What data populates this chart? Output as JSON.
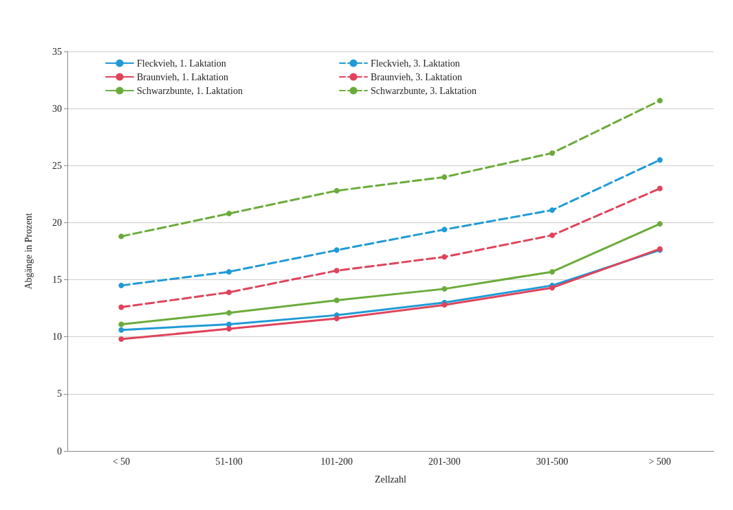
{
  "chart_data": {
    "type": "line",
    "xlabel": "Zellzahl",
    "ylabel": "Abgänge in Prozent",
    "categories": [
      "< 50",
      "51-100",
      "101-200",
      "201-300",
      "301-500",
      "> 500"
    ],
    "ylim": [
      0,
      35
    ],
    "yticks": [
      0,
      5,
      10,
      15,
      20,
      25,
      30,
      35
    ],
    "grid": "y",
    "legend": "top left",
    "marker": "circle",
    "series": [
      {
        "name": "Fleckvieh, 1. Laktation",
        "color": "#1f9ad6",
        "line_style": "solid",
        "values": [
          10.6,
          11.1,
          11.9,
          13.0,
          14.5,
          17.6
        ]
      },
      {
        "name": "Braunvieh, 1. Laktation",
        "color": "#e0435a",
        "line_style": "solid",
        "values": [
          9.8,
          10.7,
          11.6,
          12.8,
          14.3,
          17.7
        ]
      },
      {
        "name": "Schwarzbunte, 1. Laktation",
        "color": "#6aab3a",
        "line_style": "solid",
        "values": [
          11.1,
          12.1,
          13.2,
          14.2,
          15.7,
          19.9
        ]
      },
      {
        "name": "Fleckvieh, 3. Laktation",
        "color": "#1f9ad6",
        "line_style": "dashed",
        "values": [
          14.5,
          15.7,
          17.6,
          19.4,
          21.1,
          25.5
        ]
      },
      {
        "name": "Braunvieh, 3. Laktation",
        "color": "#e0435a",
        "line_style": "dashed",
        "values": [
          12.6,
          13.9,
          15.8,
          17.0,
          18.9,
          23.0
        ]
      },
      {
        "name": "Schwarzbunte, 3. Laktation",
        "color": "#6aab3a",
        "line_style": "dashed",
        "values": [
          18.8,
          20.8,
          22.8,
          24.0,
          26.1,
          30.7
        ]
      }
    ]
  }
}
